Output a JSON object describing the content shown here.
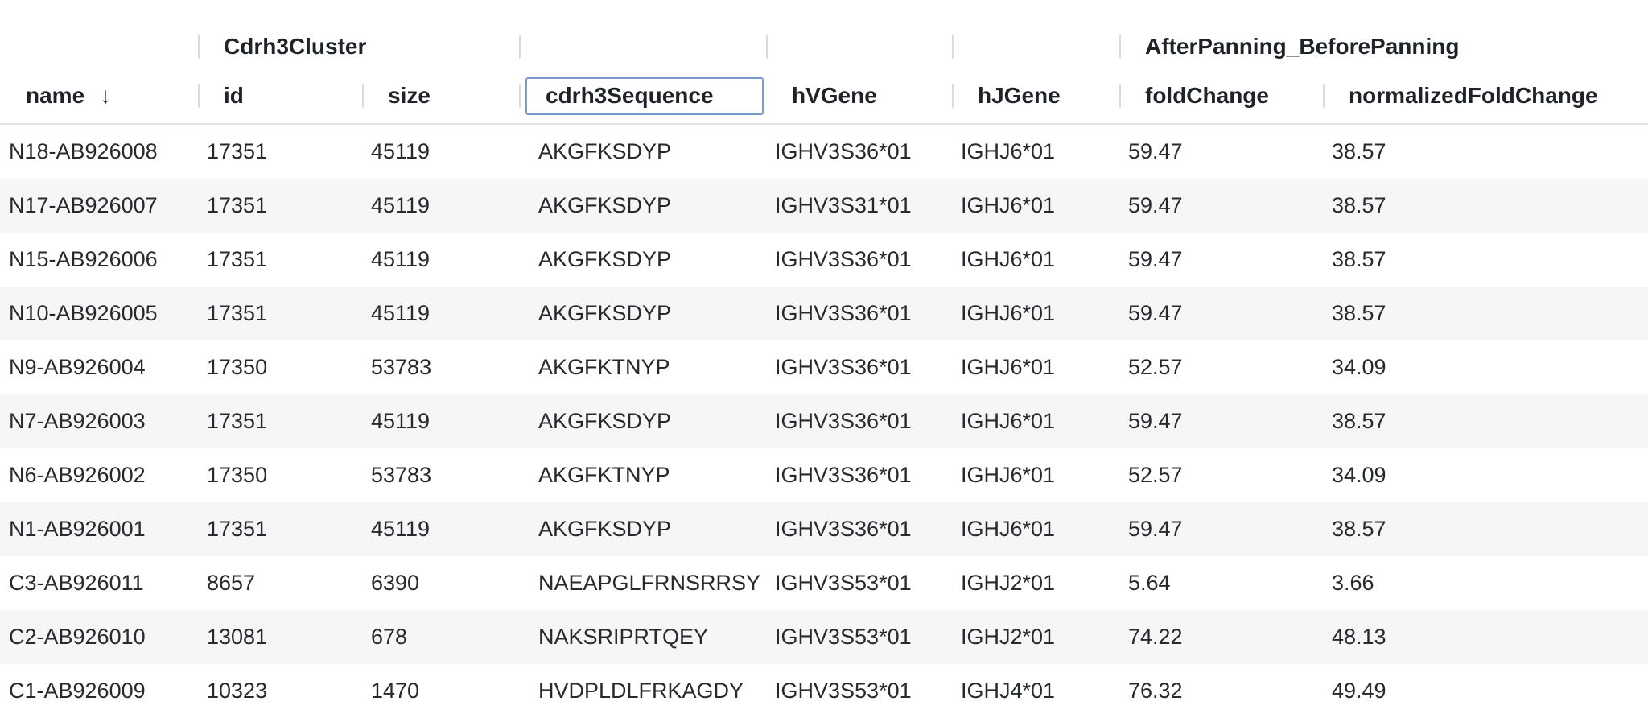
{
  "grid": {
    "groups": {
      "cdrh3_cluster": "Cdrh3Cluster",
      "after_panning_before_panning": "AfterPanning_BeforePanning"
    },
    "columns": {
      "name": "name",
      "id": "id",
      "size": "size",
      "cdrh3_sequence": "cdrh3Sequence",
      "h_v_gene": "hVGene",
      "h_j_gene": "hJGene",
      "fold_change": "foldChange",
      "normalized_fold_change": "normalizedFoldChange"
    },
    "sort": {
      "column": "name",
      "direction": "descending",
      "icon": "↓"
    },
    "selected_header": "cdrh3Sequence",
    "rows": [
      [
        "N18-AB926008",
        "17351",
        "45119",
        "AKGFKSDYP",
        "IGHV3S36*01",
        "IGHJ6*01",
        "59.47",
        "38.57"
      ],
      [
        "N17-AB926007",
        "17351",
        "45119",
        "AKGFKSDYP",
        "IGHV3S31*01",
        "IGHJ6*01",
        "59.47",
        "38.57"
      ],
      [
        "N15-AB926006",
        "17351",
        "45119",
        "AKGFKSDYP",
        "IGHV3S36*01",
        "IGHJ6*01",
        "59.47",
        "38.57"
      ],
      [
        "N10-AB926005",
        "17351",
        "45119",
        "AKGFKSDYP",
        "IGHV3S36*01",
        "IGHJ6*01",
        "59.47",
        "38.57"
      ],
      [
        "N9-AB926004",
        "17350",
        "53783",
        "AKGFKTNYP",
        "IGHV3S36*01",
        "IGHJ6*01",
        "52.57",
        "34.09"
      ],
      [
        "N7-AB926003",
        "17351",
        "45119",
        "AKGFKSDYP",
        "IGHV3S36*01",
        "IGHJ6*01",
        "59.47",
        "38.57"
      ],
      [
        "N6-AB926002",
        "17350",
        "53783",
        "AKGFKTNYP",
        "IGHV3S36*01",
        "IGHJ6*01",
        "52.57",
        "34.09"
      ],
      [
        "N1-AB926001",
        "17351",
        "45119",
        "AKGFKSDYP",
        "IGHV3S36*01",
        "IGHJ6*01",
        "59.47",
        "38.57"
      ],
      [
        "C3-AB926011",
        "8657",
        "6390",
        "NAEAPGLFRNSRRSY",
        "IGHV3S53*01",
        "IGHJ2*01",
        "5.64",
        "3.66"
      ],
      [
        "C2-AB926010",
        "13081",
        "678",
        "NAKSRIPRTQEY",
        "IGHV3S53*01",
        "IGHJ2*01",
        "74.22",
        "48.13"
      ],
      [
        "C1-AB926009",
        "10323",
        "1470",
        "HVDPLDLFRKAGDY",
        "IGHV3S53*01",
        "IGHJ4*01",
        "76.32",
        "49.49"
      ]
    ],
    "colors": {
      "focus_ring": "#7b9ad0",
      "row_stripe": "#f6f6f7",
      "separator": "#dadada",
      "header_divider": "#e3e3e5",
      "header_text": "#1f2328",
      "cell_text": "#26292e"
    }
  }
}
